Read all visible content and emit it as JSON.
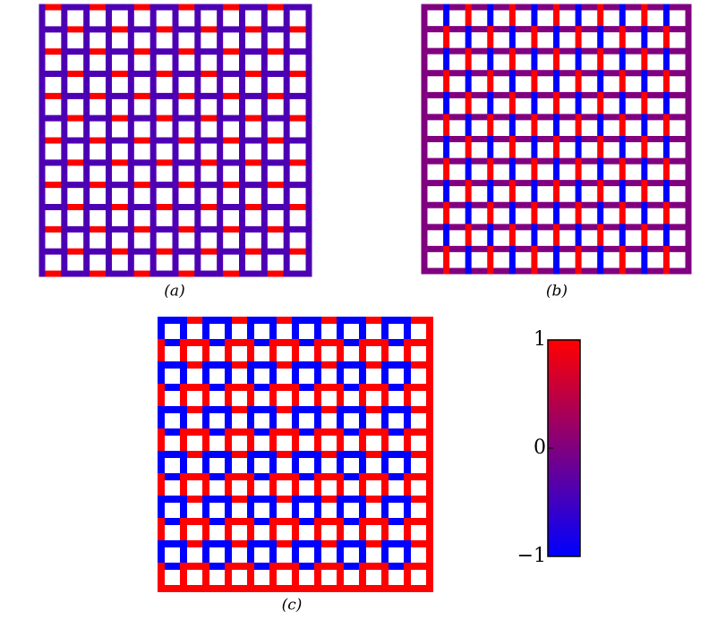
{
  "panels": [
    {
      "label": "(a)",
      "h": [
        [
          1,
          -0.4,
          1,
          -0.4,
          1,
          -0.4,
          1,
          -0.4,
          1,
          -0.4,
          1,
          -0.4
        ],
        [
          -0.4,
          1,
          -0.4,
          1,
          -0.4,
          1,
          -0.4,
          1,
          -0.4,
          1,
          -0.4,
          1
        ],
        [
          1,
          -0.4,
          1,
          -0.4,
          1,
          -0.4,
          1,
          -0.4,
          1,
          -0.4,
          1,
          -0.4
        ],
        [
          -0.4,
          1,
          -0.4,
          1,
          -0.4,
          1,
          -0.4,
          1,
          -0.4,
          1,
          -0.4,
          1
        ],
        [
          1,
          -0.4,
          1,
          -0.4,
          1,
          -0.4,
          1,
          -0.4,
          1,
          -0.4,
          1,
          -0.4
        ],
        [
          -0.4,
          1,
          -0.4,
          1,
          -0.4,
          1,
          -0.4,
          1,
          -0.4,
          1,
          -0.4,
          1
        ],
        [
          1,
          -0.4,
          1,
          -0.4,
          1,
          -0.4,
          1,
          -0.4,
          1,
          -0.4,
          1,
          -0.4
        ],
        [
          -0.4,
          1,
          -0.4,
          1,
          -0.4,
          1,
          -0.4,
          1,
          -0.4,
          1,
          -0.4,
          1
        ],
        [
          1,
          -0.4,
          1,
          -0.4,
          1,
          -0.4,
          1,
          -0.4,
          1,
          -0.4,
          1,
          -0.4
        ],
        [
          -0.4,
          1,
          -0.4,
          1,
          -0.4,
          1,
          -0.4,
          1,
          -0.4,
          1,
          -0.4,
          1
        ],
        [
          1,
          -0.4,
          1,
          -0.4,
          1,
          -0.4,
          1,
          -0.4,
          1,
          -0.4,
          1,
          -0.4
        ],
        [
          -0.4,
          1,
          -0.4,
          1,
          -0.4,
          1,
          -0.4,
          1,
          -0.4,
          1,
          -0.4,
          1
        ],
        [
          1,
          -0.4,
          1,
          -0.4,
          1,
          -0.4,
          1,
          -0.4,
          1,
          -0.4,
          1,
          -0.4
        ]
      ],
      "v": [
        [
          -0.4,
          -0.4,
          -0.4,
          -0.4,
          -0.4,
          -0.4,
          -0.4,
          -0.4,
          -0.4,
          -0.4,
          -0.4,
          -0.4,
          -0.4
        ],
        [
          -0.4,
          -0.4,
          -0.4,
          -0.4,
          -0.4,
          -0.4,
          -0.4,
          -0.4,
          -0.4,
          -0.4,
          -0.4,
          -0.4,
          -0.4
        ],
        [
          -0.4,
          -0.4,
          -0.4,
          -0.4,
          -0.4,
          -0.4,
          -0.4,
          -0.4,
          -0.4,
          -0.4,
          -0.4,
          -0.4,
          -0.4
        ],
        [
          -0.4,
          -0.4,
          -0.4,
          -0.4,
          -0.4,
          -0.4,
          -0.4,
          -0.4,
          -0.4,
          -0.4,
          -0.4,
          -0.4,
          -0.4
        ],
        [
          -0.4,
          -0.4,
          -0.4,
          -0.4,
          -0.4,
          -0.4,
          -0.4,
          -0.4,
          -0.4,
          -0.4,
          -0.4,
          -0.4,
          -0.4
        ],
        [
          -0.4,
          -0.4,
          -0.4,
          -0.4,
          -0.4,
          -0.4,
          -0.4,
          -0.4,
          -0.4,
          -0.4,
          -0.4,
          -0.4,
          -0.4
        ],
        [
          -0.4,
          -0.4,
          -0.4,
          -0.4,
          -0.4,
          -0.4,
          -0.4,
          -0.4,
          -0.4,
          -0.4,
          -0.4,
          -0.4,
          -0.4
        ],
        [
          -0.4,
          -0.4,
          -0.4,
          -0.4,
          -0.4,
          -0.4,
          -0.4,
          -0.4,
          -0.4,
          -0.4,
          -0.4,
          -0.4,
          -0.4
        ],
        [
          -0.4,
          -0.4,
          -0.4,
          -0.4,
          -0.4,
          -0.4,
          -0.4,
          -0.4,
          -0.4,
          -0.4,
          -0.4,
          -0.4,
          -0.4
        ],
        [
          -0.4,
          -0.4,
          -0.4,
          -0.4,
          -0.4,
          -0.4,
          -0.4,
          -0.4,
          -0.4,
          -0.4,
          -0.4,
          -0.4,
          -0.4
        ],
        [
          -0.4,
          -0.4,
          -0.4,
          -0.4,
          -0.4,
          -0.4,
          -0.4,
          -0.4,
          -0.4,
          -0.4,
          -0.4,
          -0.4,
          -0.4
        ],
        [
          -0.4,
          -0.4,
          -0.4,
          -0.4,
          -0.4,
          -0.4,
          -0.4,
          -0.4,
          -0.4,
          -0.4,
          -0.4,
          -0.4,
          -0.4
        ]
      ]
    },
    {
      "label": "(b)",
      "h": [
        [
          0,
          0,
          0,
          0,
          0,
          0,
          0,
          0,
          0,
          0,
          0,
          0
        ],
        [
          0,
          0,
          0,
          0,
          0,
          0,
          0,
          0,
          0,
          0,
          0,
          0
        ],
        [
          0,
          0,
          0,
          0,
          0,
          0,
          0,
          0,
          0,
          0,
          0,
          0
        ],
        [
          0,
          0,
          0,
          0,
          0,
          0,
          0,
          0,
          0,
          0,
          0,
          0
        ],
        [
          0,
          0,
          0,
          0,
          0,
          0,
          0,
          0,
          0,
          0,
          0,
          0
        ],
        [
          0,
          0,
          0,
          0,
          0,
          0,
          0,
          0,
          0,
          0,
          0,
          0
        ],
        [
          0,
          0,
          0,
          0,
          0,
          0,
          0,
          0,
          0,
          0,
          0,
          0
        ],
        [
          0,
          0,
          0,
          0,
          0,
          0,
          0,
          0,
          0,
          0,
          0,
          0
        ],
        [
          0,
          0,
          0,
          0,
          0,
          0,
          0,
          0,
          0,
          0,
          0,
          0
        ],
        [
          0,
          0,
          0,
          0,
          0,
          0,
          0,
          0,
          0,
          0,
          0,
          0
        ],
        [
          0,
          0,
          0,
          0,
          0,
          0,
          0,
          0,
          0,
          0,
          0,
          0
        ],
        [
          0,
          0,
          0,
          0,
          0,
          0,
          0,
          0,
          0,
          0,
          0,
          0
        ],
        [
          0,
          0,
          0,
          0,
          0,
          0,
          0,
          0,
          0,
          0,
          0,
          0
        ]
      ],
      "v": [
        [
          0,
          -1,
          1,
          -1,
          1,
          -1,
          1,
          -1,
          1,
          -1,
          1,
          -1,
          0
        ],
        [
          0,
          1,
          -1,
          1,
          -1,
          1,
          -1,
          1,
          -1,
          1,
          -1,
          1,
          0
        ],
        [
          0,
          -1,
          1,
          -1,
          1,
          -1,
          1,
          -1,
          1,
          -1,
          1,
          -1,
          0
        ],
        [
          0,
          1,
          -1,
          1,
          -1,
          1,
          -1,
          1,
          -1,
          1,
          -1,
          1,
          0
        ],
        [
          0,
          -1,
          1,
          -1,
          1,
          -1,
          1,
          -1,
          1,
          -1,
          1,
          -1,
          0
        ],
        [
          0,
          1,
          -1,
          1,
          -1,
          1,
          -1,
          1,
          -1,
          1,
          -1,
          1,
          0
        ],
        [
          0,
          -1,
          1,
          -1,
          1,
          -1,
          1,
          -1,
          1,
          -1,
          1,
          -1,
          0
        ],
        [
          0,
          1,
          -1,
          1,
          -1,
          1,
          -1,
          1,
          -1,
          1,
          -1,
          1,
          0
        ],
        [
          0,
          -1,
          1,
          -1,
          1,
          -1,
          1,
          -1,
          1,
          -1,
          1,
          -1,
          0
        ],
        [
          0,
          1,
          -1,
          1,
          -1,
          1,
          -1,
          1,
          -1,
          1,
          -1,
          1,
          0
        ],
        [
          0,
          -1,
          1,
          -1,
          1,
          -1,
          1,
          -1,
          1,
          -1,
          1,
          -1,
          0
        ],
        [
          0,
          1,
          -1,
          1,
          -1,
          1,
          -1,
          1,
          -1,
          1,
          -1,
          1,
          0
        ]
      ]
    },
    {
      "label": "(c)",
      "h": [
        [
          -1,
          1,
          -1,
          1,
          -1,
          1,
          -1,
          1,
          -1,
          1,
          -1,
          1
        ],
        [
          -1,
          1,
          -1,
          1,
          -1,
          1,
          -1,
          1,
          -1,
          1,
          -1,
          1
        ],
        [
          -1,
          1,
          -1,
          1,
          -1,
          1,
          -1,
          1,
          -1,
          1,
          -1,
          1
        ],
        [
          -1,
          1,
          -1,
          1,
          -1,
          1,
          -1,
          1,
          -1,
          1,
          -1,
          1
        ],
        [
          -1,
          1,
          -1,
          1,
          -1,
          1,
          -1,
          1,
          -1,
          1,
          -1,
          1
        ],
        [
          -1,
          1,
          -1,
          1,
          -1,
          1,
          -1,
          1,
          -1,
          1,
          -1,
          1
        ],
        [
          -1,
          1,
          -1,
          1,
          -1,
          1,
          -1,
          1,
          -1,
          1,
          -1,
          1
        ],
        [
          -1,
          1,
          -1,
          1,
          -1,
          1,
          -1,
          1,
          -1,
          1,
          -1,
          1
        ],
        [
          -1,
          1,
          -1,
          1,
          -1,
          1,
          -1,
          1,
          -1,
          1,
          -1,
          1
        ],
        [
          -1,
          1,
          -1,
          1,
          -1,
          1,
          -1,
          1,
          -1,
          1,
          -1,
          1
        ],
        [
          -1,
          1,
          -1,
          1,
          -1,
          1,
          -1,
          1,
          -1,
          1,
          -1,
          1
        ],
        [
          -1,
          1,
          -1,
          1,
          -1,
          1,
          -1,
          1,
          -1,
          1,
          -1,
          1
        ],
        [
          1,
          1,
          1,
          1,
          1,
          1,
          1,
          1,
          1,
          1,
          1,
          1
        ]
      ],
      "v": [
        [
          -1,
          -1,
          -1,
          -1,
          -1,
          -1,
          -1,
          -1,
          -1,
          -1,
          -1,
          -1,
          1
        ],
        [
          1,
          1,
          1,
          1,
          1,
          1,
          1,
          1,
          1,
          1,
          1,
          1,
          1
        ],
        [
          -1,
          -1,
          -1,
          -1,
          -1,
          -1,
          -1,
          -1,
          -1,
          -1,
          -1,
          -1,
          1
        ],
        [
          1,
          1,
          1,
          1,
          1,
          1,
          1,
          1,
          1,
          1,
          1,
          1,
          1
        ],
        [
          -1,
          -1,
          -1,
          -1,
          -1,
          -1,
          -1,
          -1,
          -1,
          -1,
          -1,
          -1,
          1
        ],
        [
          1,
          1,
          1,
          1,
          1,
          1,
          1,
          1,
          1,
          1,
          1,
          1,
          1
        ],
        [
          -1,
          -1,
          -1,
          -1,
          -1,
          -1,
          -1,
          -1,
          -1,
          -1,
          -1,
          -1,
          1
        ],
        [
          1,
          1,
          1,
          1,
          1,
          1,
          1,
          1,
          1,
          1,
          1,
          1,
          1
        ],
        [
          -1,
          -1,
          -1,
          -1,
          -1,
          -1,
          -1,
          -1,
          -1,
          -1,
          -1,
          -1,
          1
        ],
        [
          1,
          1,
          1,
          1,
          1,
          1,
          1,
          1,
          1,
          1,
          1,
          1,
          1
        ],
        [
          -1,
          -1,
          -1,
          -1,
          -1,
          -1,
          -1,
          -1,
          -1,
          -1,
          -1,
          -1,
          1
        ],
        [
          1,
          1,
          1,
          1,
          1,
          1,
          1,
          1,
          1,
          1,
          1,
          1,
          1
        ]
      ]
    }
  ],
  "colorbar": {
    "lim": [
      -1,
      1
    ],
    "ticks": [
      {
        "value": -1,
        "label": "−1"
      },
      0,
      1
    ],
    "colors": [
      "#0000ff",
      "#800080",
      "#ff0000"
    ]
  }
}
